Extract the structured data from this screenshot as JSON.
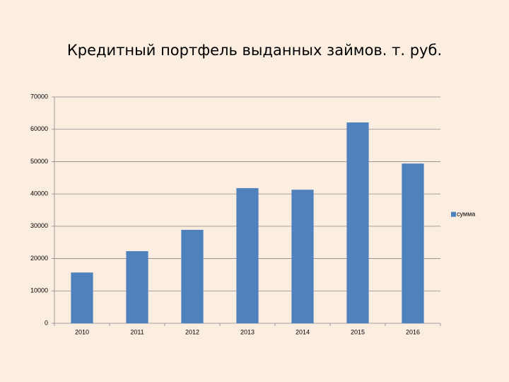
{
  "chart_data": {
    "type": "bar",
    "title": "Кредитный портфель выданных займов. т. руб.",
    "categories": [
      "2010",
      "2011",
      "2012",
      "2013",
      "2014",
      "2015",
      "2016"
    ],
    "series": [
      {
        "name": "сумма",
        "color": "#4f81bd",
        "values": [
          15700,
          22300,
          28900,
          41800,
          41300,
          62100,
          49400
        ]
      }
    ],
    "ylim": [
      0,
      70000
    ],
    "yticks": [
      0,
      10000,
      20000,
      30000,
      40000,
      50000,
      60000,
      70000
    ],
    "grid": true,
    "legend": "right"
  }
}
